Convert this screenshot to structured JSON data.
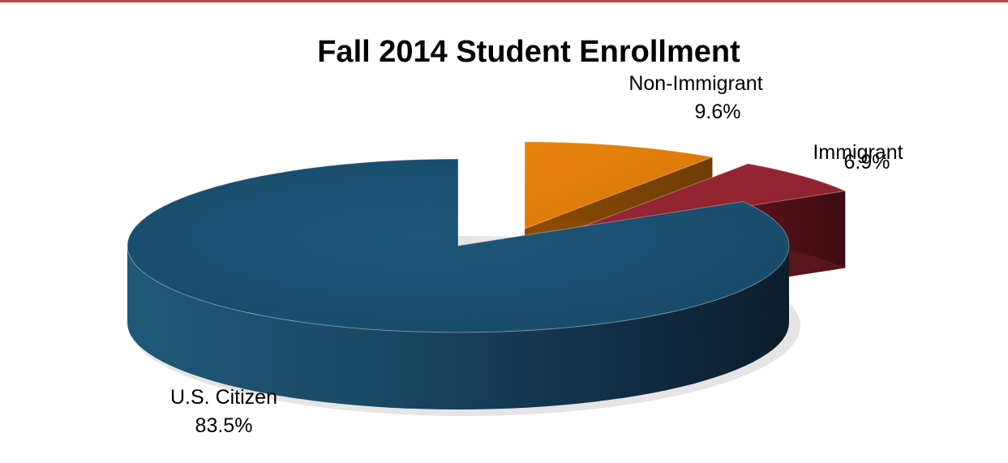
{
  "colors": {
    "top_rule": "#b5494e",
    "us_citizen": "#1b5274",
    "non_immigrant": "#e07b0a",
    "immigrant": "#942431"
  },
  "chart_data": {
    "type": "pie",
    "style": "3d-exploded",
    "title": "Fall 2014 Student Enrollment",
    "slices": [
      {
        "name": "Non-Immigrant",
        "value": 9.6,
        "label": "9.6%",
        "color": "#e07b0a"
      },
      {
        "name": "Immigrant",
        "value": 6.9,
        "label": "6.9%",
        "color": "#942431"
      },
      {
        "name": "U.S. Citizen",
        "value": 83.5,
        "label": "83.5%",
        "color": "#1b5274"
      }
    ],
    "legend": "none",
    "data_labels": "outside"
  }
}
